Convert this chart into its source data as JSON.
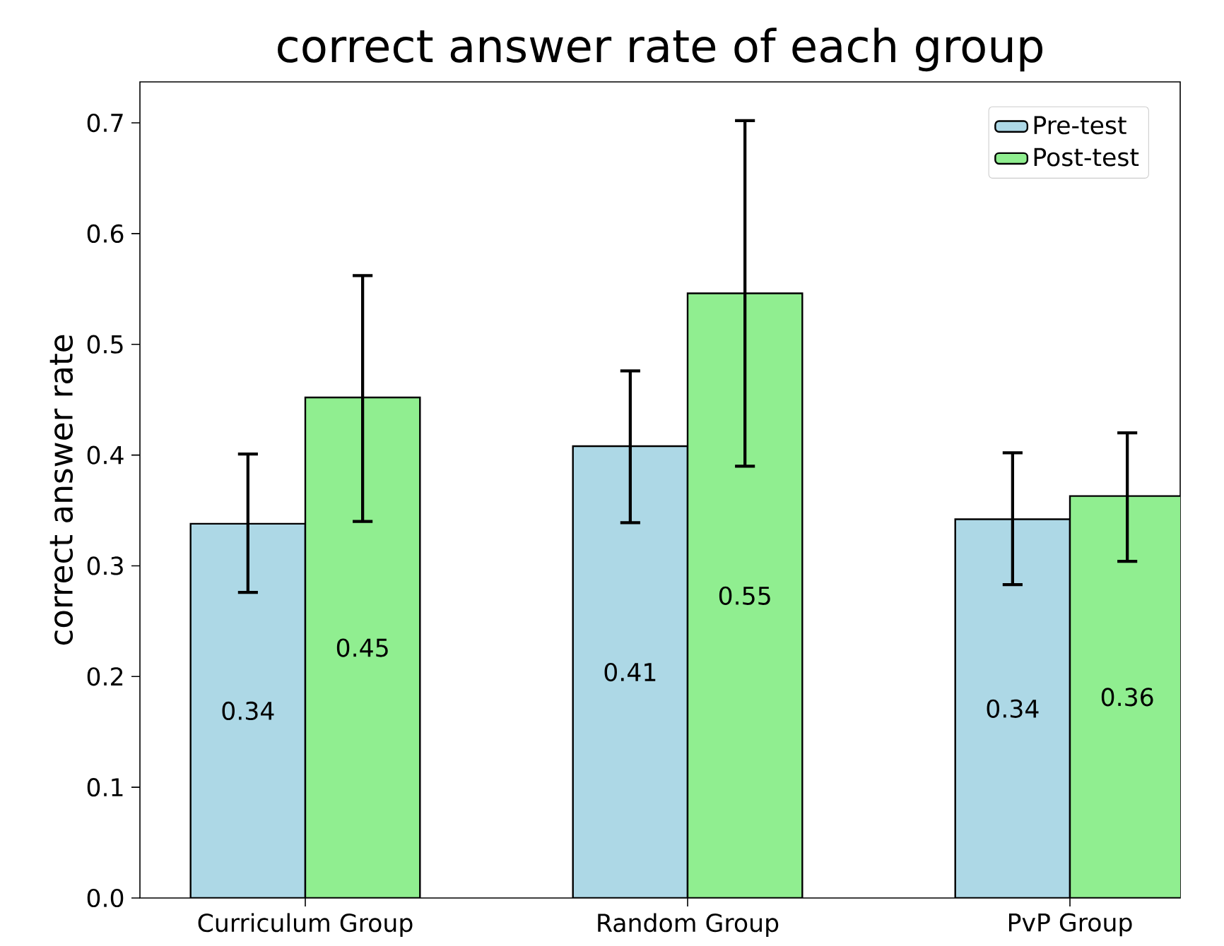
{
  "chart_data": {
    "type": "bar",
    "title": "correct answer rate of each group",
    "ylabel": "correct answer rate",
    "categories": [
      "Curriculum Group",
      "Random Group",
      "PvP Group"
    ],
    "ylim": [
      0,
      0.737
    ],
    "yticks": [
      {
        "value": 0,
        "label": "0.0"
      },
      0.1,
      0.2,
      0.3,
      0.4,
      0.5,
      0.6,
      0.7
    ],
    "legend": "top right",
    "series": [
      {
        "name": "Pre-test",
        "color": "#add8e6",
        "values": [
          0.338,
          0.408,
          0.342
        ],
        "errors": [
          [
            0.276,
            0.401
          ],
          [
            0.339,
            0.476
          ],
          [
            0.283,
            0.402
          ]
        ],
        "value_labels": [
          "0.34",
          "0.41",
          "0.34"
        ]
      },
      {
        "name": "Post-test",
        "color": "#90ee90",
        "values": [
          0.452,
          0.546,
          0.363
        ],
        "errors": [
          [
            0.34,
            0.562
          ],
          [
            0.39,
            0.702
          ],
          [
            0.304,
            0.42
          ]
        ],
        "value_labels": [
          "0.45",
          "0.55",
          "0.36"
        ]
      }
    ]
  }
}
